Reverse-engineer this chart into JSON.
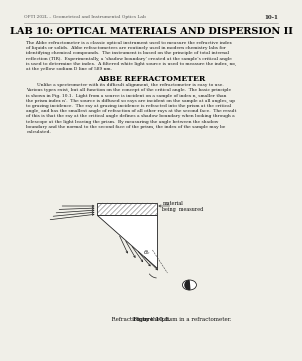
{
  "header_left": "OPTI 202L – Geometrical and Instrumental Optics Lab",
  "page_number": "10-1",
  "title": "LAB 10: OPTICAL MATERIALS AND DISPERSION II",
  "section_heading": "ABBE REFRACTOMETER",
  "bg_color": "#f0efe8",
  "text_color": "#1a1a1a"
}
